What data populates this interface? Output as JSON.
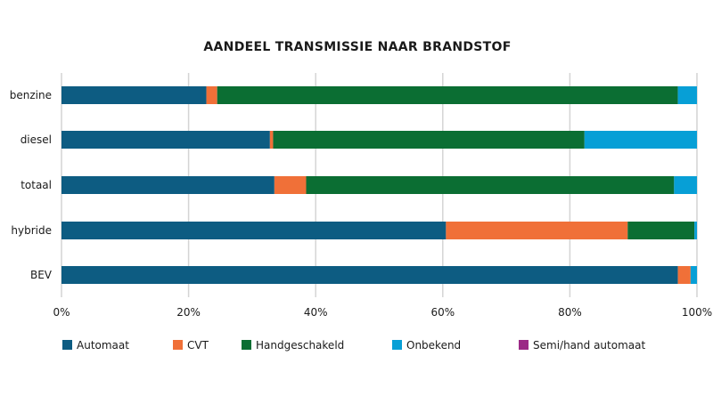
{
  "chart_data": {
    "type": "bar",
    "orientation": "horizontal",
    "stacked": true,
    "percent": true,
    "title": "AANDEEL TRANSMISSIE NAAR BRANDSTOF",
    "categories": [
      "benzine",
      "diesel",
      "totaal",
      "hybride",
      "BEV"
    ],
    "xlim": [
      0,
      100
    ],
    "x_ticks": [
      "0%",
      "20%",
      "40%",
      "60%",
      "80%",
      "100%"
    ],
    "grid": true,
    "legend_position": "bottom",
    "series": [
      {
        "name": "Automaat",
        "color": "#0d5c82",
        "values": [
          22.8,
          32.8,
          33.5,
          60.5,
          97.0
        ]
      },
      {
        "name": "CVT",
        "color": "#f07038",
        "values": [
          1.7,
          0.5,
          5.0,
          28.6,
          2.0
        ]
      },
      {
        "name": "Handgeschakeld",
        "color": "#0b6e33",
        "values": [
          72.5,
          49.0,
          57.9,
          10.5,
          0.0
        ]
      },
      {
        "name": "Onbekend",
        "color": "#079fd6",
        "values": [
          3.0,
          17.7,
          3.6,
          0.4,
          1.0
        ]
      },
      {
        "name": "Semi/hand automaat",
        "color": "#9b2a86",
        "values": [
          0.0,
          0.0,
          0.0,
          0.0,
          0.0
        ]
      }
    ]
  }
}
